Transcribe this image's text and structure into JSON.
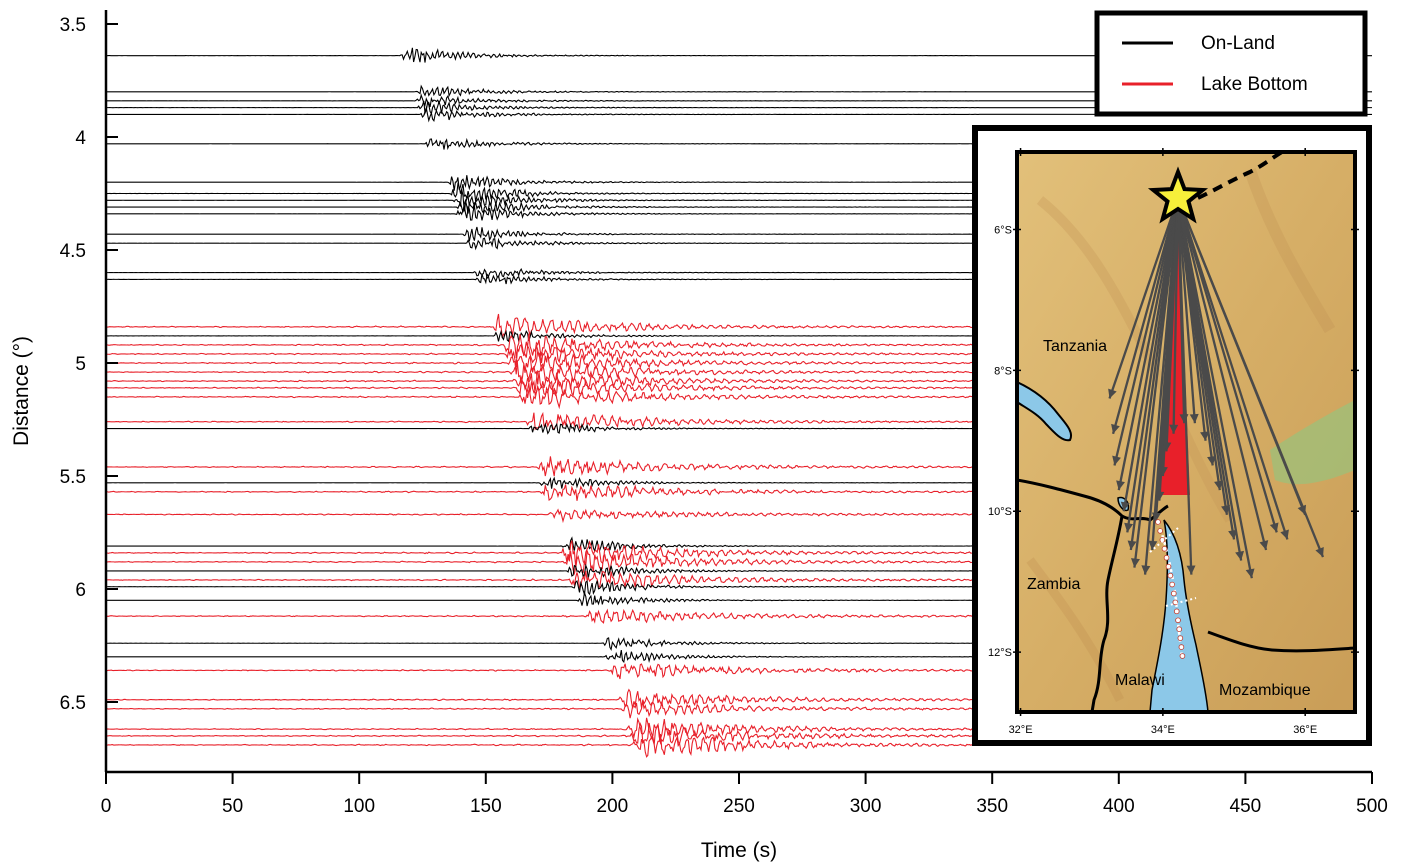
{
  "chart_data": [
    {
      "type": "line",
      "title": "",
      "xlabel": "Time (s)",
      "ylabel": "Distance (°)",
      "xlim": [
        0,
        500
      ],
      "ylim": [
        3.5,
        6.85
      ],
      "y_inverted": true,
      "xticks": [
        0,
        50,
        100,
        150,
        200,
        250,
        300,
        350,
        400,
        450,
        500
      ],
      "yticks": [
        3.5,
        4,
        4.5,
        5,
        5.5,
        6,
        6.5
      ],
      "ytick_labels": [
        "3.5",
        "4",
        "4.5",
        "5",
        "5.5",
        "6",
        "6.5"
      ],
      "legend": {
        "placement": "top-right",
        "entries": [
          {
            "name": "On-Land",
            "color": "#000000"
          },
          {
            "name": "Lake Bottom",
            "color": "#e8202a"
          }
        ]
      },
      "traces": [
        {
          "d": 3.64,
          "s": "On-Land",
          "onset": 116,
          "amp": 1.0
        },
        {
          "d": 3.8,
          "s": "On-Land",
          "onset": 122,
          "amp": 0.8
        },
        {
          "d": 3.84,
          "s": "On-Land",
          "onset": 122,
          "amp": 0.8
        },
        {
          "d": 3.87,
          "s": "On-Land",
          "onset": 123,
          "amp": 0.8
        },
        {
          "d": 3.9,
          "s": "On-Land",
          "onset": 124,
          "amp": 0.8
        },
        {
          "d": 4.03,
          "s": "On-Land",
          "onset": 126,
          "amp": 0.8
        },
        {
          "d": 4.2,
          "s": "On-Land",
          "onset": 135,
          "amp": 1.0
        },
        {
          "d": 4.25,
          "s": "On-Land",
          "onset": 136,
          "amp": 1.2
        },
        {
          "d": 4.28,
          "s": "On-Land",
          "onset": 137,
          "amp": 1.2
        },
        {
          "d": 4.31,
          "s": "On-Land",
          "onset": 138,
          "amp": 1.2
        },
        {
          "d": 4.34,
          "s": "On-Land",
          "onset": 138,
          "amp": 1.0
        },
        {
          "d": 4.43,
          "s": "On-Land",
          "onset": 141,
          "amp": 0.8
        },
        {
          "d": 4.47,
          "s": "On-Land",
          "onset": 142,
          "amp": 0.8
        },
        {
          "d": 4.6,
          "s": "On-Land",
          "onset": 145,
          "amp": 0.7
        },
        {
          "d": 4.63,
          "s": "On-Land",
          "onset": 146,
          "amp": 0.7
        },
        {
          "d": 4.84,
          "s": "Lake Bottom",
          "onset": 152,
          "amp": 1.0
        },
        {
          "d": 4.88,
          "s": "On-Land",
          "onset": 153,
          "amp": 0.8
        },
        {
          "d": 4.92,
          "s": "Lake Bottom",
          "onset": 157,
          "amp": 1.0
        },
        {
          "d": 4.96,
          "s": "Lake Bottom",
          "onset": 158,
          "amp": 1.0
        },
        {
          "d": 5.0,
          "s": "Lake Bottom",
          "onset": 159,
          "amp": 1.1
        },
        {
          "d": 5.04,
          "s": "Lake Bottom",
          "onset": 160,
          "amp": 1.1
        },
        {
          "d": 5.08,
          "s": "Lake Bottom",
          "onset": 161,
          "amp": 1.1
        },
        {
          "d": 5.11,
          "s": "Lake Bottom",
          "onset": 162,
          "amp": 1.0
        },
        {
          "d": 5.15,
          "s": "Lake Bottom",
          "onset": 163,
          "amp": 1.0
        },
        {
          "d": 5.26,
          "s": "Lake Bottom",
          "onset": 166,
          "amp": 1.0
        },
        {
          "d": 5.29,
          "s": "On-Land",
          "onset": 167,
          "amp": 0.9
        },
        {
          "d": 5.46,
          "s": "Lake Bottom",
          "onset": 170,
          "amp": 0.9
        },
        {
          "d": 5.53,
          "s": "On-Land",
          "onset": 171,
          "amp": 0.8
        },
        {
          "d": 5.57,
          "s": "Lake Bottom",
          "onset": 172,
          "amp": 0.9
        },
        {
          "d": 5.67,
          "s": "Lake Bottom",
          "onset": 175,
          "amp": 0.4
        },
        {
          "d": 5.81,
          "s": "On-Land",
          "onset": 180,
          "amp": 1.0
        },
        {
          "d": 5.84,
          "s": "Lake Bottom",
          "onset": 180,
          "amp": 1.1
        },
        {
          "d": 5.88,
          "s": "Lake Bottom",
          "onset": 181,
          "amp": 1.1
        },
        {
          "d": 5.92,
          "s": "On-Land",
          "onset": 182,
          "amp": 1.1
        },
        {
          "d": 5.96,
          "s": "Lake Bottom",
          "onset": 183,
          "amp": 1.0
        },
        {
          "d": 5.99,
          "s": "On-Land",
          "onset": 184,
          "amp": 1.0
        },
        {
          "d": 6.05,
          "s": "On-Land",
          "onset": 186,
          "amp": 0.8
        },
        {
          "d": 6.12,
          "s": "Lake Bottom",
          "onset": 190,
          "amp": 0.6
        },
        {
          "d": 6.24,
          "s": "On-Land",
          "onset": 196,
          "amp": 0.8
        },
        {
          "d": 6.3,
          "s": "On-Land",
          "onset": 197,
          "amp": 0.8
        },
        {
          "d": 6.36,
          "s": "Lake Bottom",
          "onset": 199,
          "amp": 0.7
        },
        {
          "d": 6.49,
          "s": "Lake Bottom",
          "onset": 203,
          "amp": 0.7
        },
        {
          "d": 6.53,
          "s": "Lake Bottom",
          "onset": 204,
          "amp": 0.6
        },
        {
          "d": 6.62,
          "s": "Lake Bottom",
          "onset": 206,
          "amp": 1.0
        },
        {
          "d": 6.65,
          "s": "Lake Bottom",
          "onset": 207,
          "amp": 1.0
        },
        {
          "d": 6.69,
          "s": "Lake Bottom",
          "onset": 208,
          "amp": 1.2
        }
      ]
    },
    {
      "type": "map",
      "lat_ticks": [
        "6°S",
        "8°S",
        "10°S",
        "12°S"
      ],
      "lon_ticks": [
        "32°E",
        "34°E",
        "36°E"
      ],
      "labels": {
        "tanzania": "Tanzania",
        "zambia": "Zambia",
        "malawi": "Malawi",
        "mozambique": "Mozambique"
      },
      "epicenter_marker": "star",
      "colors": {
        "terrain": "#d8b46a",
        "water": "#8cc8e8",
        "fan": "#e8202a",
        "rays": "#4a4a4a",
        "star": "#f7ef3a"
      },
      "ray_endpoints": [
        [
          33.25,
          8.4
        ],
        [
          33.3,
          8.9
        ],
        [
          33.32,
          9.35
        ],
        [
          33.38,
          9.7
        ],
        [
          33.45,
          10.0
        ],
        [
          33.5,
          10.3
        ],
        [
          33.55,
          10.55
        ],
        [
          33.6,
          10.8
        ],
        [
          33.75,
          10.9
        ],
        [
          33.85,
          10.55
        ],
        [
          33.9,
          10.15
        ],
        [
          33.95,
          9.85
        ],
        [
          34.0,
          9.5
        ],
        [
          34.05,
          9.15
        ],
        [
          34.15,
          8.9
        ],
        [
          34.3,
          8.75
        ],
        [
          34.45,
          8.75
        ],
        [
          34.6,
          9.0
        ],
        [
          34.7,
          9.35
        ],
        [
          34.8,
          9.7
        ],
        [
          34.9,
          10.05
        ],
        [
          35.0,
          10.4
        ],
        [
          35.1,
          10.7
        ],
        [
          35.25,
          10.95
        ],
        [
          35.45,
          10.55
        ],
        [
          35.6,
          10.3
        ],
        [
          35.75,
          10.4
        ],
        [
          36.0,
          10.05
        ],
        [
          36.25,
          10.65
        ],
        [
          34.4,
          10.9
        ]
      ]
    }
  ]
}
